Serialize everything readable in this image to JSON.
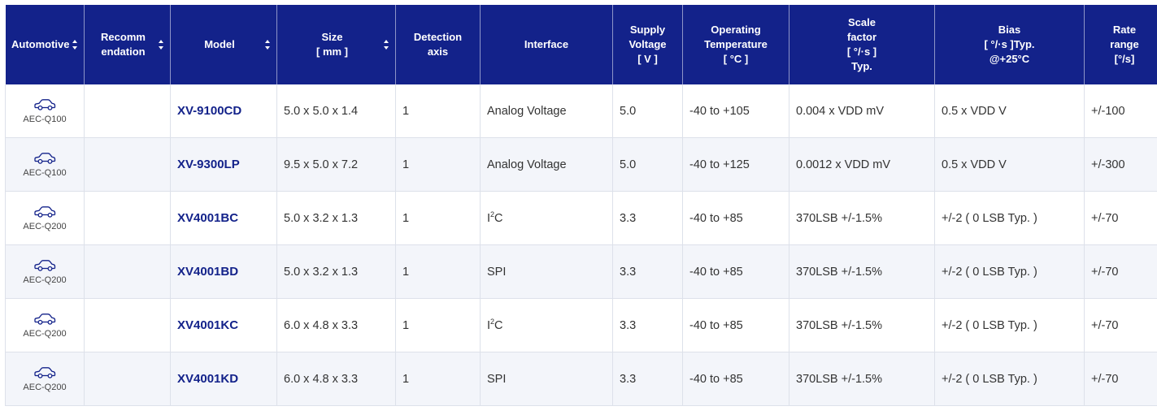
{
  "colors": {
    "header_bg": "#13228a",
    "model_text": "#13228a",
    "row_alt_bg": "#f3f5fa"
  },
  "columns": [
    {
      "label": "Automotive",
      "sortable": true
    },
    {
      "label": "Recomm\nendation",
      "sortable": true
    },
    {
      "label": "Model",
      "sortable": true
    },
    {
      "label": "Size\n[ mm ]",
      "sortable": true
    },
    {
      "label": "Detection\naxis",
      "sortable": false
    },
    {
      "label": "Interface",
      "sortable": false
    },
    {
      "label": "Supply\nVoltage\n[ V ]",
      "sortable": false
    },
    {
      "label": "Operating\nTemperature\n[ °C ]",
      "sortable": false
    },
    {
      "label": "Scale\nfactor\n[ °/·s ]\nTyp.",
      "sortable": false
    },
    {
      "label": "Bias\n[ °/·s ]Typ.\n@+25°C",
      "sortable": false
    },
    {
      "label": "Rate\nrange\n[°/s]",
      "sortable": false
    }
  ],
  "rows": [
    {
      "icon": "car-icon",
      "aec": "AEC-Q100",
      "recommendation": "",
      "model": "XV-9100CD",
      "size": "5.0 x 5.0 x 1.4",
      "axis": "1",
      "interface": "Analog Voltage",
      "interface_sup": "",
      "interface_rest": "",
      "voltage": "5.0",
      "temp": "-40 to +105",
      "scale": "0.004 x VDD mV",
      "bias": "0.5 x VDD V",
      "rate": "+/-100"
    },
    {
      "icon": "car-icon",
      "aec": "AEC-Q100",
      "recommendation": "",
      "model": "XV-9300LP",
      "size": "9.5 x 5.0 x 7.2",
      "axis": "1",
      "interface": "Analog Voltage",
      "interface_sup": "",
      "interface_rest": "",
      "voltage": "5.0",
      "temp": "-40 to +125",
      "scale": "0.0012 x VDD mV",
      "bias": "0.5 x VDD V",
      "rate": "+/-300"
    },
    {
      "icon": "car-icon",
      "aec": "AEC-Q200",
      "recommendation": "",
      "model": "XV4001BC",
      "size": "5.0 x 3.2 x 1.3",
      "axis": "1",
      "interface": "I",
      "interface_sup": "2",
      "interface_rest": "C",
      "voltage": "3.3",
      "temp": "-40 to +85",
      "scale": "370LSB +/-1.5%",
      "bias": "+/-2 ( 0 LSB Typ. )",
      "rate": "+/-70"
    },
    {
      "icon": "car-icon",
      "aec": "AEC-Q200",
      "recommendation": "",
      "model": "XV4001BD",
      "size": "5.0 x 3.2 x 1.3",
      "axis": "1",
      "interface": "SPI",
      "interface_sup": "",
      "interface_rest": "",
      "voltage": "3.3",
      "temp": "-40 to +85",
      "scale": "370LSB +/-1.5%",
      "bias": "+/-2 ( 0 LSB Typ. )",
      "rate": "+/-70"
    },
    {
      "icon": "car-icon",
      "aec": "AEC-Q200",
      "recommendation": "",
      "model": "XV4001KC",
      "size": "6.0 x 4.8 x 3.3",
      "axis": "1",
      "interface": "I",
      "interface_sup": "2",
      "interface_rest": "C",
      "voltage": "3.3",
      "temp": "-40 to +85",
      "scale": "370LSB +/-1.5%",
      "bias": "+/-2 ( 0 LSB Typ. )",
      "rate": "+/-70"
    },
    {
      "icon": "car-icon",
      "aec": "AEC-Q200",
      "recommendation": "",
      "model": "XV4001KD",
      "size": "6.0 x 4.8 x 3.3",
      "axis": "1",
      "interface": "SPI",
      "interface_sup": "",
      "interface_rest": "",
      "voltage": "3.3",
      "temp": "-40 to +85",
      "scale": "370LSB +/-1.5%",
      "bias": "+/-2 ( 0 LSB Typ. )",
      "rate": "+/-70"
    }
  ]
}
